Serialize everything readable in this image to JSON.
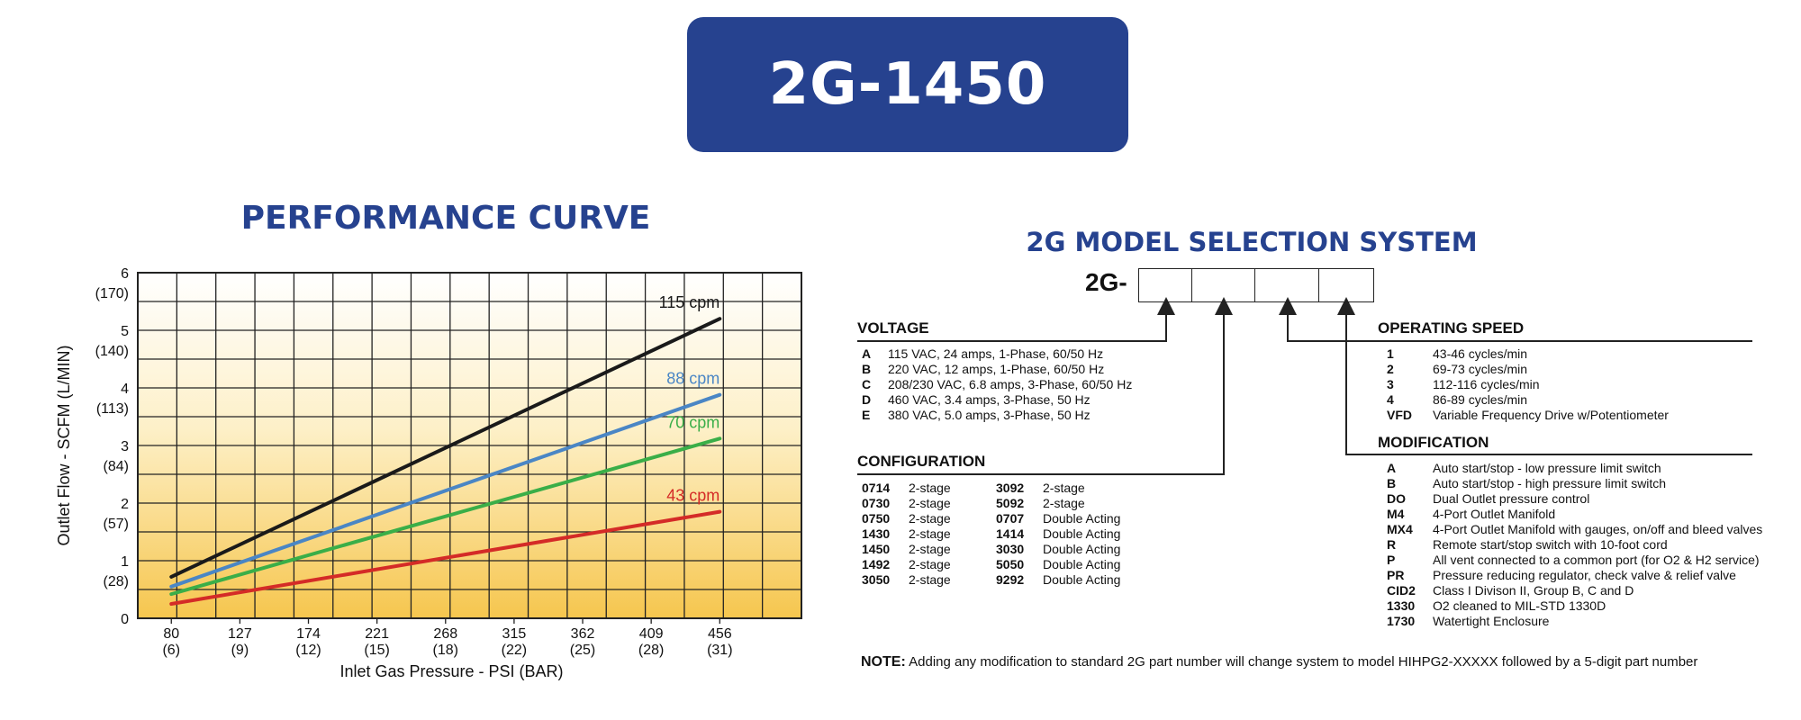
{
  "banner": {
    "text": "2G-1450"
  },
  "performance": {
    "title": "PERFORMANCE CURVE"
  },
  "colors": {
    "brand": "#26428f",
    "black": "#1a1a1a",
    "blue": "#4a86c5",
    "green": "#3aae48",
    "red": "#d42b27",
    "gradient_top": "#ffffff",
    "gradient_bottom": "#f6c64e"
  },
  "chart_data": {
    "type": "line",
    "xlabel": "Inlet Gas Pressure - PSI (BAR)",
    "ylabel": "Outlet  Flow - SCFM  (L/MIN)",
    "x_ticks": [
      {
        "value": 80,
        "label": "80",
        "sub": "(6)"
      },
      {
        "value": 127,
        "label": "127",
        "sub": "(9)"
      },
      {
        "value": 174,
        "label": "174",
        "sub": "(12)"
      },
      {
        "value": 221,
        "label": "221",
        "sub": "(15)"
      },
      {
        "value": 268,
        "label": "268",
        "sub": "(18)"
      },
      {
        "value": 315,
        "label": "315",
        "sub": "(22)"
      },
      {
        "value": 362,
        "label": "362",
        "sub": "(25)"
      },
      {
        "value": 409,
        "label": "409",
        "sub": "(28)"
      },
      {
        "value": 456,
        "label": "456",
        "sub": "(31)"
      }
    ],
    "y_ticks": [
      {
        "value": 0,
        "label": "0",
        "sub": ""
      },
      {
        "value": 1,
        "label": "1",
        "sub": "(28)"
      },
      {
        "value": 2,
        "label": "2",
        "sub": "(57)"
      },
      {
        "value": 3,
        "label": "3",
        "sub": "(84)"
      },
      {
        "value": 4,
        "label": "4",
        "sub": "(113)"
      },
      {
        "value": 5,
        "label": "5",
        "sub": "(140)"
      },
      {
        "value": 6,
        "label": "6",
        "sub": "(170)"
      }
    ],
    "xlim": [
      57,
      512
    ],
    "ylim": [
      0,
      6
    ],
    "grid": true,
    "series": [
      {
        "name": "115 cpm",
        "color": "#1a1a1a",
        "x": [
          80,
          456
        ],
        "y": [
          0.72,
          5.2
        ]
      },
      {
        "name": "88 cpm",
        "color": "#4a86c5",
        "x": [
          80,
          456
        ],
        "y": [
          0.55,
          3.88
        ]
      },
      {
        "name": "70 cpm",
        "color": "#3aae48",
        "x": [
          80,
          456
        ],
        "y": [
          0.42,
          3.12
        ]
      },
      {
        "name": "43 cpm",
        "color": "#d42b27",
        "x": [
          80,
          456
        ],
        "y": [
          0.25,
          1.85
        ]
      }
    ]
  },
  "selection": {
    "title": "2G MODEL SELECTION SYSTEM",
    "prefix": "2G-",
    "voltage": {
      "title": "VOLTAGE",
      "items": [
        {
          "code": "A",
          "desc": "115 VAC, 24 amps, 1-Phase, 60/50 Hz"
        },
        {
          "code": "B",
          "desc": "220 VAC,  12 amps, 1-Phase, 60/50 Hz"
        },
        {
          "code": "C",
          "desc": "208/230 VAC,  6.8 amps, 3-Phase, 60/50 Hz"
        },
        {
          "code": "D",
          "desc": "460 VAC,  3.4 amps, 3-Phase, 50 Hz"
        },
        {
          "code": "E",
          "desc": "380 VAC, 5.0 amps, 3-Phase, 50 Hz"
        }
      ]
    },
    "configuration": {
      "title": "CONFIGURATION",
      "col1": [
        {
          "code": "0714",
          "desc": "2-stage"
        },
        {
          "code": "0730",
          "desc": "2-stage"
        },
        {
          "code": "0750",
          "desc": "2-stage"
        },
        {
          "code": "1430",
          "desc": "2-stage"
        },
        {
          "code": "1450",
          "desc": "2-stage"
        },
        {
          "code": "1492",
          "desc": "2-stage"
        },
        {
          "code": "3050",
          "desc": "2-stage"
        }
      ],
      "col2": [
        {
          "code": "3092",
          "desc": "2-stage"
        },
        {
          "code": "5092",
          "desc": "2-stage"
        },
        {
          "code": "0707",
          "desc": "Double Acting"
        },
        {
          "code": "1414",
          "desc": "Double Acting"
        },
        {
          "code": "3030",
          "desc": "Double Acting"
        },
        {
          "code": "5050",
          "desc": "Double Acting"
        },
        {
          "code": "9292",
          "desc": "Double Acting"
        }
      ]
    },
    "speed": {
      "title": "OPERATING SPEED",
      "items": [
        {
          "code": "1",
          "desc": "43-46 cycles/min"
        },
        {
          "code": "2",
          "desc": "69-73 cycles/min"
        },
        {
          "code": "3",
          "desc": "112-116 cycles/min"
        },
        {
          "code": "4",
          "desc": "86-89 cycles/min"
        },
        {
          "code": "VFD",
          "desc": "Variable Frequency Drive w/Potentiometer"
        }
      ]
    },
    "modification": {
      "title": "MODIFICATION",
      "items": [
        {
          "code": "A",
          "desc": "Auto start/stop - low pressure limit switch"
        },
        {
          "code": "B",
          "desc": "Auto start/stop - high pressure limit switch"
        },
        {
          "code": "DO",
          "desc": "Dual Outlet pressure control"
        },
        {
          "code": "M4",
          "desc": "4-Port Outlet Manifold"
        },
        {
          "code": "MX4",
          "desc": "4-Port Outlet Manifold with gauges, on/off and bleed valves"
        },
        {
          "code": "R",
          "desc": "Remote start/stop switch with 10-foot cord"
        },
        {
          "code": "P",
          "desc": "All vent connected to a common port (for O2 & H2 service)"
        },
        {
          "code": "PR",
          "desc": "Pressure reducing regulator, check valve & relief valve"
        },
        {
          "code": "CID2",
          "desc": "Class I Divison II, Group B, C and D"
        },
        {
          "code": "1330",
          "desc": "O2 cleaned to MIL-STD 1330D"
        },
        {
          "code": "1730",
          "desc": "Watertight Enclosure"
        }
      ]
    },
    "note": {
      "label": "NOTE:",
      "text": "Adding any modification to standard 2G part number will change system to model HIHPG2-XXXXX followed by a 5-digit part number"
    }
  }
}
